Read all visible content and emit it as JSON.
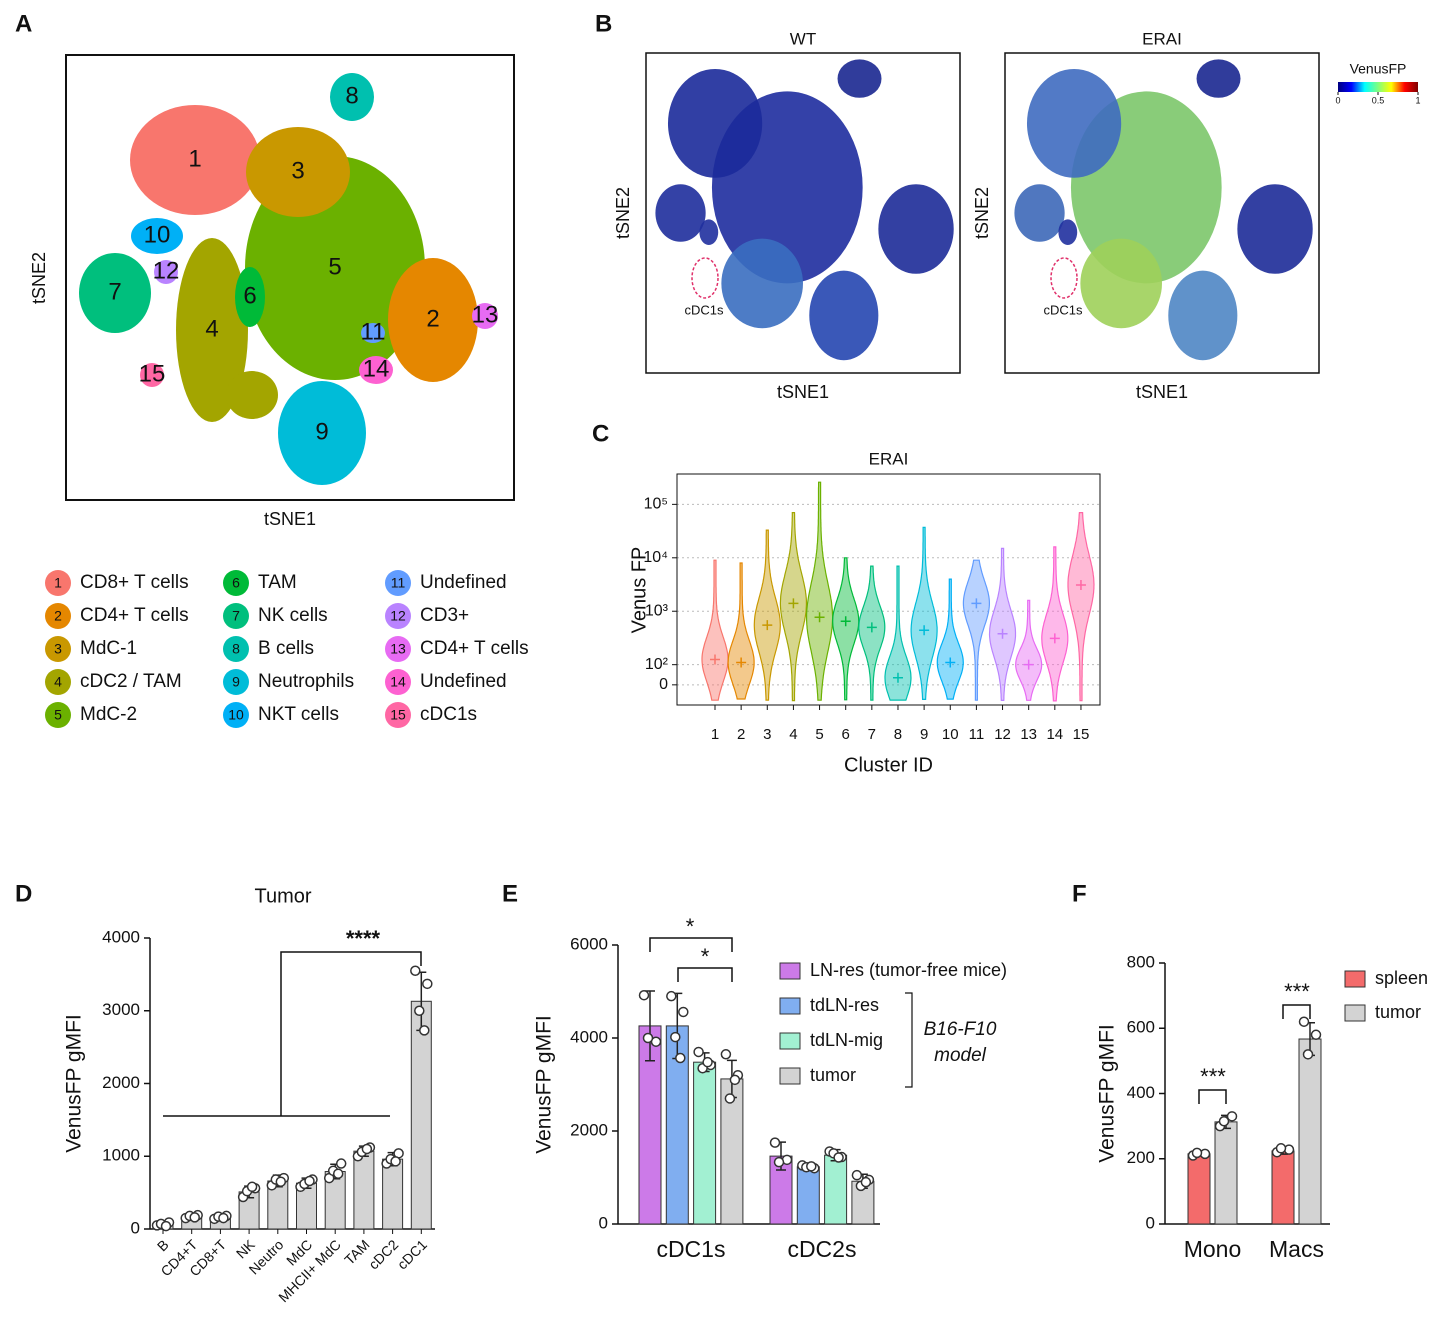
{
  "chart_data": [
    {
      "type": "tsne",
      "panel": "A",
      "x_label": "tSNE1",
      "y_label": "tSNE2",
      "clusters": [
        "1",
        "2",
        "3",
        "4",
        "5",
        "6",
        "7",
        "8",
        "9",
        "10",
        "11",
        "12",
        "13",
        "14",
        "15"
      ],
      "legend": [
        "CD8+ T cells",
        "CD4+ T cells",
        "MdC-1",
        "cDC2 / TAM",
        "MdC-2",
        "TAM",
        "NK cells",
        "B cells",
        "Neutrophils",
        "NKT cells",
        "Undefined",
        "CD3+",
        "CD4+ T cells",
        "Undefined",
        "cDC1s"
      ],
      "colors": [
        "#f8766d",
        "#e58700",
        "#c99800",
        "#a3a500",
        "#6bb100",
        "#00ba38",
        "#00bf7d",
        "#00c0af",
        "#00bcd8",
        "#00b0f6",
        "#619cff",
        "#b983ff",
        "#e76bf3",
        "#fd61d1",
        "#ff67a4"
      ]
    },
    {
      "type": "tsne_heat",
      "panel": "B",
      "titles": [
        "WT",
        "ERAI"
      ],
      "x_label": "tSNE1",
      "y_label": "tSNE2",
      "annotation": "cDC1s",
      "colorbar": {
        "title": "VenusFP",
        "ticks": [
          0,
          0.5,
          1
        ],
        "colors": [
          "#00007f",
          "#0000ff",
          "#00ffff",
          "#7fff7f",
          "#ffff00",
          "#ff0000",
          "#7f0000"
        ]
      }
    },
    {
      "type": "violin",
      "panel": "C",
      "title": "ERAI",
      "x_label": "Cluster ID",
      "y_label": "Venus FP",
      "categories": [
        "1",
        "2",
        "3",
        "4",
        "5",
        "6",
        "7",
        "8",
        "9",
        "10",
        "11",
        "12",
        "13",
        "14",
        "15"
      ],
      "colors": [
        "#f8766d",
        "#e58700",
        "#c99800",
        "#a3a500",
        "#6bb100",
        "#00ba38",
        "#00bf7d",
        "#00c0af",
        "#00bcd8",
        "#00b0f6",
        "#619cff",
        "#b983ff",
        "#e76bf3",
        "#fd61d1",
        "#ff67a4"
      ],
      "values": [
        125,
        110,
        550,
        1400,
        770,
        650,
        500,
        35,
        440,
        110,
        1400,
        380,
        100,
        310,
        3100
      ],
      "max": [
        9000,
        8000,
        33000,
        70000,
        260000,
        10000,
        7000,
        7000,
        37000,
        4000,
        9000,
        15000,
        1600,
        16000,
        70000
      ],
      "min": [
        -80,
        -80,
        -80,
        -80,
        -80,
        -80,
        -80,
        -80,
        -80,
        -80,
        -80,
        -80,
        -80,
        -80,
        -80
      ],
      "yscale": "biexponential",
      "ylim": [
        -100,
        370000
      ],
      "yticks": [
        0,
        {
          "value": 100,
          "label": "10²"
        },
        {
          "value": 1000,
          "label": "10³"
        },
        {
          "value": 10000,
          "label": "10⁴"
        },
        {
          "value": 100000,
          "label": "10⁵"
        }
      ],
      "grid": true
    },
    {
      "type": "bar",
      "panel": "D",
      "title": "Tumor",
      "y_label": "VenusFP gMFI",
      "categories": [
        "B",
        "CD4+T",
        "CD8+T",
        "NK",
        "Neutro",
        "MdC",
        "MHCII+ MdC",
        "TAM",
        "cDC2",
        "cDC1"
      ],
      "values": [
        60,
        170,
        160,
        510,
        660,
        630,
        790,
        1070,
        960,
        3130
      ],
      "errors": [
        30,
        30,
        30,
        80,
        80,
        70,
        100,
        70,
        90,
        400
      ],
      "points": [
        [
          50,
          90,
          70,
          40
        ],
        [
          150,
          190,
          180,
          160
        ],
        [
          140,
          180,
          170,
          150
        ],
        [
          440,
          560,
          520,
          580
        ],
        [
          600,
          700,
          680,
          650
        ],
        [
          580,
          680,
          620,
          660
        ],
        [
          700,
          900,
          800,
          760
        ],
        [
          1000,
          1120,
          1060,
          1100
        ],
        [
          900,
          1040,
          960,
          930
        ],
        [
          3550,
          3370,
          3000,
          2730
        ]
      ],
      "color": "#d3d3d3",
      "ylim": [
        0,
        4000
      ],
      "yticks": [
        0,
        1000,
        2000,
        3000,
        4000
      ],
      "annotations": [
        "****"
      ]
    },
    {
      "type": "grouped_bar",
      "panel": "E",
      "y_label": "VenusFP gMFI",
      "categories": [
        "cDC1s",
        "cDC2s"
      ],
      "series": [
        {
          "name": "LN-res (tumor-free mice)",
          "color": "#cc7ae8",
          "values": [
            4260,
            1460
          ],
          "errors": [
            750,
            300
          ],
          "points": [
            [
              4920,
              3920,
              4000
            ],
            [
              1750,
              1380,
              1330
            ]
          ]
        },
        {
          "name": "tdLN-res",
          "color": "#80aef0",
          "values": [
            4260,
            1230
          ],
          "errors": [
            700,
            80
          ],
          "points": [
            [
              4900,
              4560,
              4020,
              3570
            ],
            [
              1260,
              1200,
              1220,
              1240
            ]
          ]
        },
        {
          "name": "tdLN-mig",
          "color": "#a2f0d2",
          "values": [
            3480,
            1480
          ],
          "errors": [
            200,
            120
          ],
          "points": [
            [
              3700,
              3420,
              3350,
              3480
            ],
            [
              1560,
              1440,
              1520,
              1430
            ]
          ]
        },
        {
          "name": "tumor",
          "color": "#d3d3d3",
          "values": [
            3120,
            920
          ],
          "errors": [
            400,
            150
          ],
          "points": [
            [
              3650,
              3200,
              2700,
              3100
            ],
            [
              1050,
              950,
              820,
              900
            ]
          ]
        }
      ],
      "ylim": [
        0,
        6000
      ],
      "yticks": [
        0,
        2000,
        4000,
        6000
      ],
      "annotations": [
        "*",
        "*"
      ],
      "legend_note": [
        "B16-F10",
        "model"
      ]
    },
    {
      "type": "grouped_bar",
      "panel": "F",
      "y_label": "VenusFP gMFI",
      "categories": [
        "Mono",
        "Macs"
      ],
      "series": [
        {
          "name": "spleen",
          "color": "#f36b6b",
          "values": [
            215,
            224
          ],
          "errors": [
            5,
            10
          ],
          "points": [
            [
              210,
              215,
              218
            ],
            [
              220,
              228,
              232
            ]
          ]
        },
        {
          "name": "tumor",
          "color": "#d3d3d3",
          "values": [
            313,
            567
          ],
          "errors": [
            20,
            50
          ],
          "points": [
            [
              300,
              330,
              315
            ],
            [
              620,
              580,
              520
            ]
          ]
        }
      ],
      "ylim": [
        0,
        800
      ],
      "yticks": [
        0,
        200,
        400,
        600,
        800
      ],
      "annotations": [
        "***",
        "***"
      ]
    }
  ]
}
